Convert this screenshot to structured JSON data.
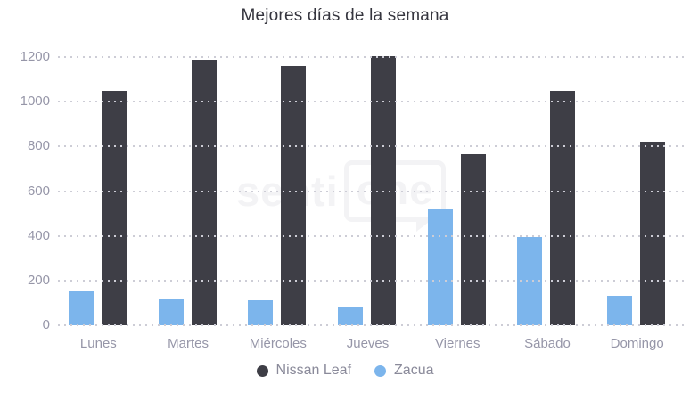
{
  "title": "Mejores días de la semana",
  "watermark": {
    "text_left": "senti",
    "text_boxed": "one"
  },
  "chart_data": {
    "type": "bar",
    "title": "Mejores días de la semana",
    "categories": [
      "Lunes",
      "Martes",
      "Miércoles",
      "Jueves",
      "Viernes",
      "Sábado",
      "Domingo"
    ],
    "series": [
      {
        "name": "Nissan Leaf",
        "color": "#3e3e46",
        "values": [
          1050,
          1190,
          1160,
          1205,
          765,
          1050,
          820
        ]
      },
      {
        "name": "Zacua",
        "color": "#7cb5ec",
        "values": [
          155,
          120,
          110,
          85,
          520,
          395,
          130
        ]
      }
    ],
    "bar_draw_order": [
      "Zacua",
      "Nissan Leaf"
    ],
    "xlabel": "",
    "ylabel": "",
    "ylim": [
      0,
      1200
    ],
    "yticks": [
      0,
      200,
      400,
      600,
      800,
      1000,
      1200
    ],
    "grid": "horizontal-dotted",
    "legend_position": "bottom",
    "legend": [
      {
        "label": "Nissan Leaf",
        "color": "#3e3e46"
      },
      {
        "label": "Zacua",
        "color": "#7cb5ec"
      }
    ]
  }
}
